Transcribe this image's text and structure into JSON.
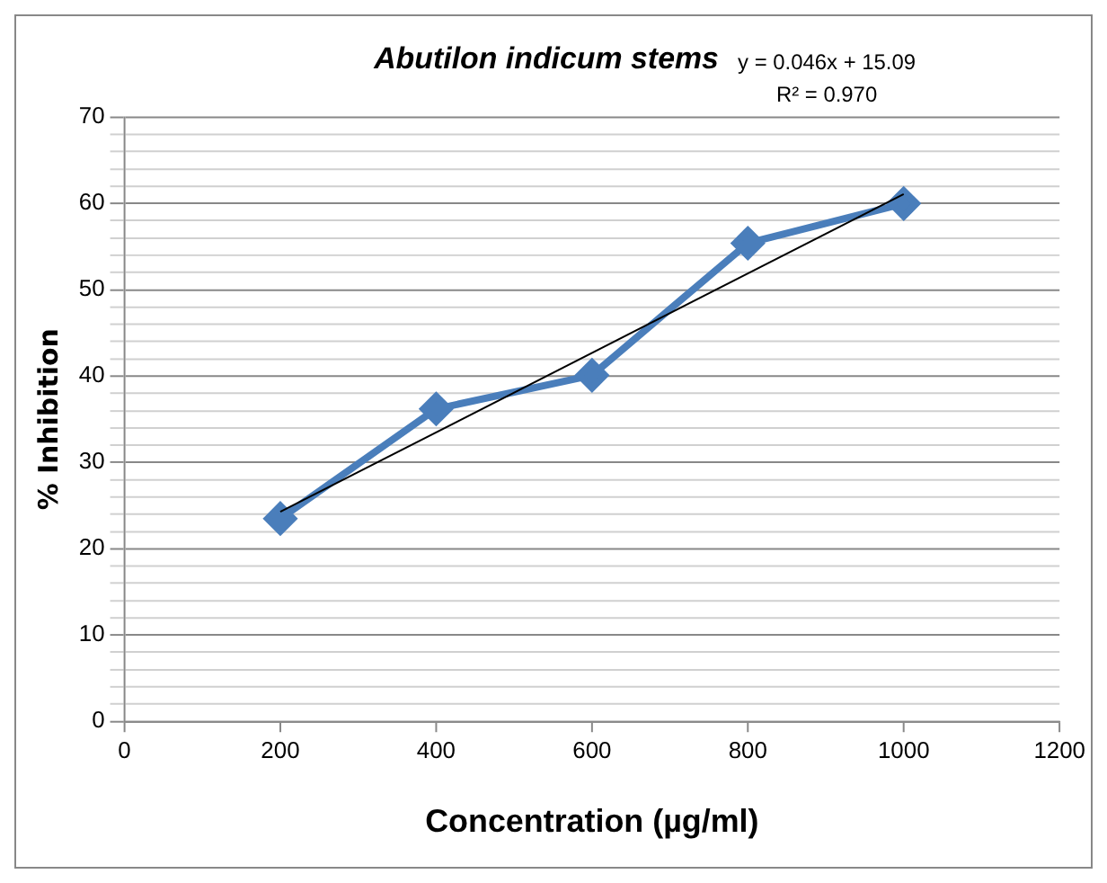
{
  "chart_data": {
    "type": "line",
    "title": "Abutilon indicum stems",
    "xlabel": "Concentration (µg/ml)",
    "ylabel": "% Inhibition",
    "x": [
      200,
      400,
      600,
      800,
      1000
    ],
    "series": [
      {
        "color": "#4a7ebb",
        "values": [
          23.5,
          36.2,
          40.1,
          55.4,
          60
        ],
        "marker": "diamond"
      },
      {
        "type": "line",
        "color": "#000000",
        "x": [
          200,
          1000
        ],
        "values": [
          24.29,
          61.09
        ],
        "marker": "none"
      }
    ],
    "xlim": [
      0,
      1200
    ],
    "xticks": [
      0,
      200,
      400,
      600,
      800,
      1000,
      1200
    ],
    "ylim": [
      0,
      70
    ],
    "yticks": [
      0,
      {
        "value": 2,
        "label": null
      },
      {
        "value": 4,
        "label": null
      },
      {
        "value": 6,
        "label": null
      },
      {
        "value": 8,
        "label": null
      },
      10,
      {
        "value": 12,
        "label": null
      },
      {
        "value": 14,
        "label": null
      },
      {
        "value": 16,
        "label": null
      },
      {
        "value": 18,
        "label": null
      },
      20,
      {
        "value": 22,
        "label": null
      },
      {
        "value": 24,
        "label": null
      },
      {
        "value": 26,
        "label": null
      },
      {
        "value": 28,
        "label": null
      },
      30,
      {
        "value": 32,
        "label": null
      },
      {
        "value": 34,
        "label": null
      },
      {
        "value": 36,
        "label": null
      },
      {
        "value": 38,
        "label": null
      },
      40,
      {
        "value": 42,
        "label": null
      },
      {
        "value": 44,
        "label": null
      },
      {
        "value": 46,
        "label": null
      },
      {
        "value": 48,
        "label": null
      },
      50,
      {
        "value": 52,
        "label": null
      },
      {
        "value": 54,
        "label": null
      },
      {
        "value": 56,
        "label": null
      },
      {
        "value": 58,
        "label": null
      },
      60,
      {
        "value": 62,
        "label": null
      },
      {
        "value": 64,
        "label": null
      },
      {
        "value": 66,
        "label": null
      },
      {
        "value": 68,
        "label": null
      },
      70
    ],
    "grid": "y",
    "legend": false,
    "annotations": [
      "y = 0.046x + 15.09",
      "R² = 0.970"
    ]
  }
}
